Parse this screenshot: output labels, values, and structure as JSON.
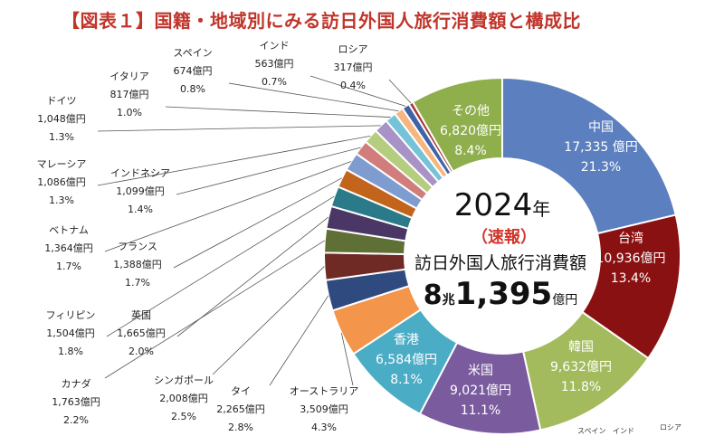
{
  "title": "【図表１】国籍・地域別にみる訪日外国人旅行消費額と構成比",
  "center": {
    "year": "2024",
    "year_suffix": "年",
    "status": "（速報）",
    "caption": "訪日外国人旅行消費額",
    "total_main": "8",
    "total_unit1": "兆",
    "total_rest": "1,395",
    "total_unit2": "億円"
  },
  "footer_labels": [
    "スペイン",
    "インド",
    "ロシア"
  ],
  "chart_data": {
    "type": "pie",
    "title": "【図表１】国籍・地域別にみる訪日外国人旅行消費額と構成比",
    "unit": "億円",
    "total_label": "8兆1,395億円",
    "slices": [
      {
        "name": "中国",
        "value": 17335,
        "value_label": "17,335 億円",
        "pct": "21.3%",
        "color": "#5b7fbf"
      },
      {
        "name": "台湾",
        "value": 10936,
        "value_label": "10,936億円",
        "pct": "13.4%",
        "color": "#8a1111"
      },
      {
        "name": "韓国",
        "value": 9632,
        "value_label": "9,632億円",
        "pct": "11.8%",
        "color": "#a3bb5c"
      },
      {
        "name": "米国",
        "value": 9021,
        "value_label": "9,021億円",
        "pct": "11.1%",
        "color": "#7a5b9e"
      },
      {
        "name": "香港",
        "value": 6584,
        "value_label": "6,584億円",
        "pct": "8.1%",
        "color": "#4bacc6"
      },
      {
        "name": "オーストラリア",
        "value": 3509,
        "value_label": "3,509億円",
        "pct": "4.3%",
        "color": "#f3954a"
      },
      {
        "name": "タイ",
        "value": 2265,
        "value_label": "2,265億円",
        "pct": "2.8%",
        "color": "#2f4a7e"
      },
      {
        "name": "シンガポール",
        "value": 2008,
        "value_label": "2,008億円",
        "pct": "2.5%",
        "color": "#6f2a26"
      },
      {
        "name": "カナダ",
        "value": 1763,
        "value_label": "1,763億円",
        "pct": "2.2%",
        "color": "#5e7035"
      },
      {
        "name": "英国",
        "value": 1665,
        "value_label": "1,665億円",
        "pct": "2.0%",
        "color": "#4a3766"
      },
      {
        "name": "フィリピン",
        "value": 1504,
        "value_label": "1,504億円",
        "pct": "1.8%",
        "color": "#2b7a8a"
      },
      {
        "name": "フランス",
        "value": 1388,
        "value_label": "1,388億円",
        "pct": "1.7%",
        "color": "#c2641b"
      },
      {
        "name": "ベトナム",
        "value": 1364,
        "value_label": "1,364億円",
        "pct": "1.7%",
        "color": "#7f9cd0"
      },
      {
        "name": "インドネシア",
        "value": 1099,
        "value_label": "1,099億円",
        "pct": "1.4%",
        "color": "#d07d7b"
      },
      {
        "name": "マレーシア",
        "value": 1086,
        "value_label": "1,086億円",
        "pct": "1.3%",
        "color": "#b5cd7e"
      },
      {
        "name": "ドイツ",
        "value": 1048,
        "value_label": "1,048億円",
        "pct": "1.3%",
        "color": "#a992c6"
      },
      {
        "name": "イタリア",
        "value": 817,
        "value_label": "817億円",
        "pct": "1.0%",
        "color": "#76c3d8"
      },
      {
        "name": "スペイン",
        "value": 674,
        "value_label": "674億円",
        "pct": "0.8%",
        "color": "#f6b77f"
      },
      {
        "name": "インド",
        "value": 563,
        "value_label": "563億円",
        "pct": "0.7%",
        "color": "#3f63a8"
      },
      {
        "name": "ロシア",
        "value": 317,
        "value_label": "317億円",
        "pct": "0.4%",
        "color": "#a33a35"
      },
      {
        "name": "その他",
        "value": 6820,
        "value_label": "6,820億円",
        "pct": "8.4%",
        "color": "#8fae4c"
      }
    ]
  }
}
